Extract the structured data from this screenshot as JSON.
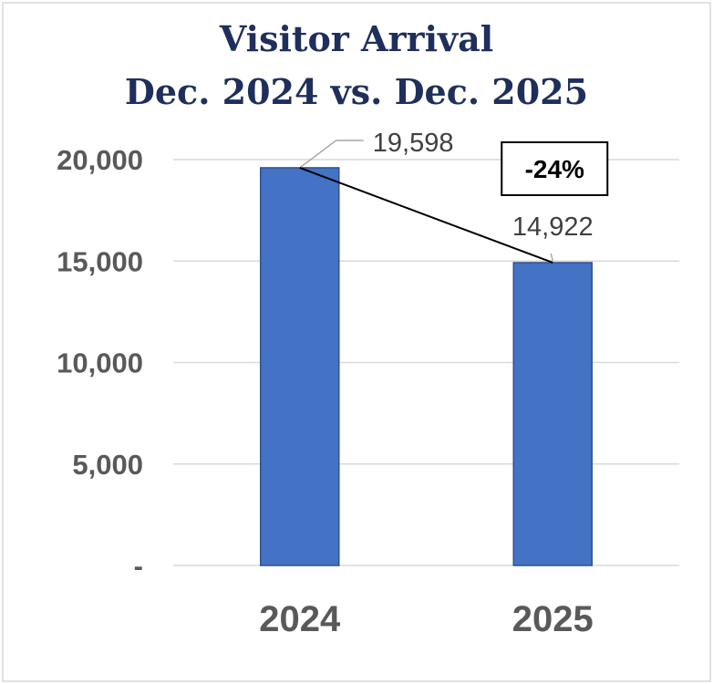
{
  "chart_data": {
    "type": "bar",
    "title": [
      "Visitor Arrival",
      "Dec. 2024 vs. Dec. 2025"
    ],
    "categories": [
      "2024",
      "2025"
    ],
    "values": [
      19598,
      14922
    ],
    "value_labels": [
      "19,598",
      "14,922"
    ],
    "ylim": [
      0,
      20000
    ],
    "y_ticks": [
      {
        "value": 0,
        "label": "-"
      },
      {
        "value": 5000,
        "label": "5,000"
      },
      {
        "value": 10000,
        "label": "10,000"
      },
      {
        "value": 15000,
        "label": "15,000"
      },
      {
        "value": 20000,
        "label": "20,000"
      }
    ],
    "grid": true,
    "bar_color": "#4472c4",
    "annotation": {
      "text": "-24%",
      "from_category": "2024",
      "to_category": "2025"
    }
  }
}
